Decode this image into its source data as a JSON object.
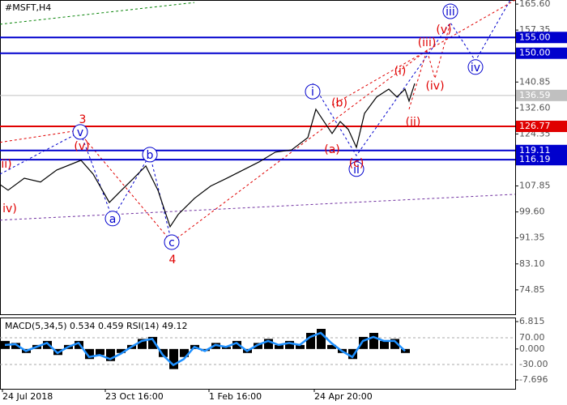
{
  "chart_data": [
    {
      "type": "line",
      "title": "#MSFT,H4",
      "x": [
        0,
        10,
        30,
        50,
        70,
        100,
        115,
        135,
        150,
        165,
        180,
        195,
        210,
        220,
        240,
        260,
        280,
        300,
        320,
        340,
        360,
        380,
        390,
        400,
        410,
        420,
        430,
        440,
        450,
        465,
        480,
        490,
        500,
        505,
        512
      ],
      "series": [
        {
          "color": "#000000",
          "values": [
            108.3,
            106.5,
            110.3,
            109.1,
            112.9,
            116.0,
            111.6,
            102.6,
            106.5,
            110.3,
            114.2,
            106.5,
            94.9,
            98.8,
            103.9,
            107.8,
            110.3,
            112.9,
            115.5,
            118.6,
            119.3,
            123.2,
            132.2,
            128.3,
            124.5,
            128.3,
            125.8,
            120.1,
            130.9,
            136.1,
            138.6,
            136.1,
            138.6,
            134.8,
            140.4
          ]
        }
      ],
      "xlim": [
        0,
        636
      ],
      "xticks": [
        {
          "value": 3,
          "label": "24 Jul 2018"
        },
        {
          "value": 130,
          "label": "23 Oct 16:00"
        },
        {
          "value": 258,
          "label": "1 Feb 16:00"
        },
        {
          "value": 388,
          "label": "24 Apr 20:00"
        }
      ],
      "ylim": [
        67.1,
        166.9
      ],
      "yticks": [
        {
          "value": 165.6,
          "label": "165.60"
        },
        {
          "value": 157.35,
          "label": "157.35"
        },
        {
          "value": 140.85,
          "label": "140.85"
        },
        {
          "value": 132.6,
          "label": "132.60"
        },
        {
          "value": 124.35,
          "label": "124.35"
        },
        {
          "value": 107.85,
          "label": "107.85"
        },
        {
          "value": 99.6,
          "label": "99.60"
        },
        {
          "value": 91.35,
          "label": "91.35"
        },
        {
          "value": 83.1,
          "label": "83.10"
        },
        {
          "value": 74.85,
          "label": "74.85"
        }
      ],
      "levels": [
        {
          "value": 155,
          "label": "155.00",
          "color": "#0000cd"
        },
        {
          "value": 150,
          "label": "150.00",
          "color": "#0000cd"
        },
        {
          "value": 136.59,
          "label": "136.59",
          "color": "#c0c0c0"
        },
        {
          "value": 126.77,
          "label": "126.77",
          "color": "#e00000"
        },
        {
          "value": 119.11,
          "label": "119.11",
          "color": "#0000cd"
        },
        {
          "value": 116.19,
          "label": "116.19",
          "color": "#0000cd"
        }
      ],
      "annotations": [
        {
          "text": "v",
          "x": 99,
          "y": 125.0,
          "color": "#0000cd",
          "circle": true
        },
        {
          "text": "b",
          "x": 185,
          "y": 117.8,
          "color": "#0000cd",
          "circle": true
        },
        {
          "text": "a",
          "x": 139,
          "y": 97.5,
          "color": "#0000cd",
          "circle": true
        },
        {
          "text": "c",
          "x": 212,
          "y": 90.0,
          "color": "#0000cd",
          "circle": true
        },
        {
          "text": "i",
          "x": 386,
          "y": 137.8,
          "color": "#0000cd",
          "circle": true
        },
        {
          "text": "ii",
          "x": 440,
          "y": 113.2,
          "color": "#0000cd",
          "circle": true
        },
        {
          "text": "iii",
          "x": 556,
          "y": 163.3,
          "color": "#0000cd",
          "circle": true
        },
        {
          "text": "iv",
          "x": 587,
          "y": 145.6,
          "color": "#0000cd",
          "circle": true
        },
        {
          "text": "3",
          "x": 102,
          "y": 129.1,
          "color": "#e00000",
          "circle": false
        },
        {
          "text": "(v)",
          "x": 101,
          "y": 120.6,
          "color": "#e00000",
          "circle": false
        },
        {
          "text": "ii)",
          "x": 8,
          "y": 115.0,
          "color": "#e00000",
          "circle": false
        },
        {
          "text": "iv)",
          "x": 12,
          "y": 100.8,
          "color": "#e00000",
          "circle": false
        },
        {
          "text": "4",
          "x": 213,
          "y": 84.6,
          "color": "#e00000",
          "circle": false
        },
        {
          "text": "(b)",
          "x": 419,
          "y": 134.3,
          "color": "#e00000",
          "circle": false
        },
        {
          "text": "(a)",
          "x": 410,
          "y": 119.6,
          "color": "#e00000",
          "circle": false
        },
        {
          "text": "(c)",
          "x": 440,
          "y": 115.2,
          "color": "#e00000",
          "circle": false
        },
        {
          "text": "(i)",
          "x": 494,
          "y": 144.5,
          "color": "#e00000",
          "circle": false
        },
        {
          "text": "(ii)",
          "x": 510,
          "y": 128.3,
          "color": "#e00000",
          "circle": false
        },
        {
          "text": "(iii)",
          "x": 527,
          "y": 153.5,
          "color": "#e00000",
          "circle": false
        },
        {
          "text": "(iv)",
          "x": 537,
          "y": 139.7,
          "color": "#e00000",
          "circle": false
        },
        {
          "text": "(v)",
          "x": 548,
          "y": 157.6,
          "color": "#e00000",
          "circle": false
        }
      ],
      "lines": [
        {
          "color": "#008000",
          "points": [
            [
              0,
              159.2
            ],
            [
              240,
              166.1
            ]
          ]
        },
        {
          "color": "#e00000",
          "points": [
            [
              0,
              121.7
            ],
            [
              105,
              125.8
            ]
          ]
        },
        {
          "color": "#0000cd",
          "points": [
            [
              0,
              111.6
            ],
            [
              99,
              125.0
            ],
            [
              139,
              97.5
            ],
            [
              185,
              117.8
            ],
            [
              212,
              90.0
            ]
          ]
        },
        {
          "color": "#e00000",
          "points": [
            [
              105,
              122.7
            ],
            [
              212,
              90.0
            ],
            [
              530,
              151.5
            ]
          ]
        },
        {
          "color": "#e00000",
          "points": [
            [
              410,
              133.5
            ],
            [
              636,
              166.9
            ]
          ]
        },
        {
          "color": "#0000cd",
          "points": [
            [
              386,
              140.4
            ],
            [
              440,
              117.5
            ],
            [
              556,
              159.7
            ],
            [
              587,
              147.6
            ],
            [
              630,
              166.9
            ]
          ]
        },
        {
          "color": "#e00000",
          "points": [
            [
              505,
              132.2
            ],
            [
              527,
              151.0
            ],
            [
              537,
              142.0
            ],
            [
              556,
              159.7
            ]
          ]
        },
        {
          "color": "#7030a0",
          "points": [
            [
              0,
              97.0
            ],
            [
              636,
              105.2
            ]
          ]
        }
      ]
    },
    {
      "type": "macd",
      "label": "MACD(5,34,5) 0.534 0.459 RSI(14) 49.12",
      "x": [
        6,
        19,
        32,
        45,
        58,
        71,
        84,
        97,
        110,
        123,
        136,
        149,
        162,
        175,
        188,
        201,
        214,
        227,
        240,
        253,
        266,
        279,
        292,
        305,
        318,
        331,
        344,
        357,
        370,
        383,
        396,
        409,
        422,
        435,
        448,
        461,
        474,
        487,
        500
      ],
      "values": [
        2,
        1.5,
        -1,
        1,
        2,
        -1.5,
        1,
        2,
        -2.5,
        -1.5,
        -3,
        -1,
        1,
        2.5,
        3,
        -2,
        -5,
        -2,
        1,
        -0.5,
        1.5,
        0.5,
        2,
        -1,
        1.5,
        2.5,
        1,
        2,
        1,
        4,
        5,
        1,
        -1,
        -2.5,
        3,
        4,
        2,
        2.5,
        -1
      ],
      "series": [
        {
          "color": "#1e90ff",
          "values": [
            1,
            1.2,
            -0.5,
            0.5,
            1.5,
            -1,
            0.5,
            1.5,
            -2,
            -1.5,
            -2.5,
            -1.2,
            0.5,
            2,
            2.5,
            -1.5,
            -4,
            -2.5,
            0.5,
            -0.5,
            1,
            0.5,
            1.5,
            -0.5,
            1,
            2,
            1,
            1.5,
            1,
            3,
            4,
            1.5,
            -0.5,
            -2,
            2,
            3,
            2,
            2,
            -0.5
          ]
        }
      ],
      "ylim": [
        -9.9,
        7.82
      ],
      "yticks": [
        {
          "value": 6.815,
          "label": "6.815"
        },
        {
          "value": 0,
          "label": "0.000"
        },
        {
          "value": -7.696,
          "label": "-7.696"
        }
      ],
      "y2lim": [
        -120.9,
        145.8
      ],
      "y2ticks": [
        {
          "value": 70,
          "label": "70.00"
        },
        {
          "value": -30,
          "label": "-30.00"
        }
      ]
    }
  ]
}
